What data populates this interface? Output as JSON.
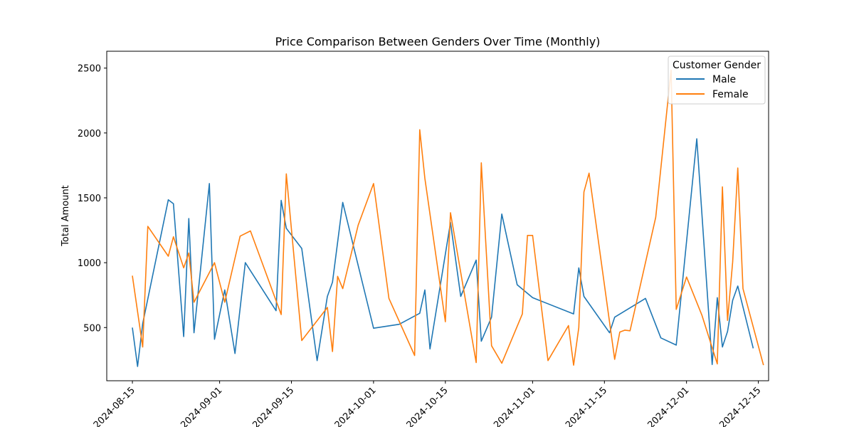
{
  "chart_data": {
    "type": "line",
    "title": "Price Comparison Between Genders Over Time (Monthly)",
    "xlabel": "",
    "ylabel": "Total Amount",
    "xlim": [
      "2024-08-10",
      "2024-12-17"
    ],
    "ylim": [
      90,
      2630
    ],
    "x_ticks": [
      "2024-08-15",
      "2024-09-01",
      "2024-09-15",
      "2024-10-01",
      "2024-10-15",
      "2024-11-01",
      "2024-11-15",
      "2024-12-01",
      "2024-12-15"
    ],
    "y_ticks": [
      500,
      1000,
      1500,
      2000,
      2500
    ],
    "grid": false,
    "legend": {
      "title": "Customer Gender",
      "position": "top-right"
    },
    "colors": {
      "Male": "#1f77b4",
      "Female": "#ff7f0e",
      "axis": "#000000"
    },
    "series": [
      {
        "name": "Male",
        "color": "#1f77b4",
        "points": [
          [
            "2024-08-15",
            500
          ],
          [
            "2024-08-16",
            200
          ],
          [
            "2024-08-17",
            530
          ],
          [
            "2024-08-22",
            1485
          ],
          [
            "2024-08-23",
            1455
          ],
          [
            "2024-08-25",
            430
          ],
          [
            "2024-08-26",
            1340
          ],
          [
            "2024-08-27",
            460
          ],
          [
            "2024-08-30",
            1610
          ],
          [
            "2024-08-31",
            410
          ],
          [
            "2024-09-02",
            790
          ],
          [
            "2024-09-04",
            300
          ],
          [
            "2024-09-06",
            1000
          ],
          [
            "2024-09-12",
            630
          ],
          [
            "2024-09-13",
            1480
          ],
          [
            "2024-09-14",
            1265
          ],
          [
            "2024-09-17",
            1110
          ],
          [
            "2024-09-20",
            245
          ],
          [
            "2024-09-22",
            740
          ],
          [
            "2024-09-23",
            850
          ],
          [
            "2024-09-25",
            1465
          ],
          [
            "2024-10-01",
            495
          ],
          [
            "2024-10-06",
            525
          ],
          [
            "2024-10-10",
            610
          ],
          [
            "2024-10-11",
            790
          ],
          [
            "2024-10-12",
            335
          ],
          [
            "2024-10-16",
            1310
          ],
          [
            "2024-10-18",
            740
          ],
          [
            "2024-10-21",
            1020
          ],
          [
            "2024-10-22",
            395
          ],
          [
            "2024-10-24",
            580
          ],
          [
            "2024-10-26",
            1375
          ],
          [
            "2024-10-29",
            830
          ],
          [
            "2024-11-01",
            730
          ],
          [
            "2024-11-09",
            605
          ],
          [
            "2024-11-10",
            960
          ],
          [
            "2024-11-11",
            740
          ],
          [
            "2024-11-16",
            460
          ],
          [
            "2024-11-17",
            580
          ],
          [
            "2024-11-23",
            725
          ],
          [
            "2024-11-26",
            420
          ],
          [
            "2024-11-29",
            365
          ],
          [
            "2024-12-03",
            1955
          ],
          [
            "2024-12-06",
            215
          ],
          [
            "2024-12-07",
            730
          ],
          [
            "2024-12-08",
            350
          ],
          [
            "2024-12-09",
            470
          ],
          [
            "2024-12-10",
            710
          ],
          [
            "2024-12-11",
            820
          ],
          [
            "2024-12-14",
            340
          ]
        ]
      },
      {
        "name": "Female",
        "color": "#ff7f0e",
        "points": [
          [
            "2024-08-15",
            900
          ],
          [
            "2024-08-17",
            350
          ],
          [
            "2024-08-18",
            1280
          ],
          [
            "2024-08-22",
            1050
          ],
          [
            "2024-08-23",
            1200
          ],
          [
            "2024-08-25",
            960
          ],
          [
            "2024-08-26",
            1075
          ],
          [
            "2024-08-27",
            695
          ],
          [
            "2024-08-31",
            1000
          ],
          [
            "2024-09-02",
            695
          ],
          [
            "2024-09-05",
            1205
          ],
          [
            "2024-09-07",
            1245
          ],
          [
            "2024-09-13",
            600
          ],
          [
            "2024-09-14",
            1685
          ],
          [
            "2024-09-17",
            400
          ],
          [
            "2024-09-22",
            655
          ],
          [
            "2024-09-23",
            315
          ],
          [
            "2024-09-24",
            895
          ],
          [
            "2024-09-25",
            800
          ],
          [
            "2024-09-28",
            1290
          ],
          [
            "2024-10-01",
            1610
          ],
          [
            "2024-10-04",
            725
          ],
          [
            "2024-10-09",
            285
          ],
          [
            "2024-10-10",
            2025
          ],
          [
            "2024-10-11",
            1650
          ],
          [
            "2024-10-15",
            545
          ],
          [
            "2024-10-16",
            1385
          ],
          [
            "2024-10-21",
            230
          ],
          [
            "2024-10-22",
            1770
          ],
          [
            "2024-10-24",
            360
          ],
          [
            "2024-10-26",
            225
          ],
          [
            "2024-10-30",
            605
          ],
          [
            "2024-10-31",
            1210
          ],
          [
            "2024-11-01",
            1210
          ],
          [
            "2024-11-04",
            245
          ],
          [
            "2024-11-08",
            515
          ],
          [
            "2024-11-09",
            210
          ],
          [
            "2024-11-10",
            500
          ],
          [
            "2024-11-11",
            1545
          ],
          [
            "2024-11-12",
            1690
          ],
          [
            "2024-11-17",
            255
          ],
          [
            "2024-11-18",
            465
          ],
          [
            "2024-11-19",
            480
          ],
          [
            "2024-11-20",
            475
          ],
          [
            "2024-11-25",
            1350
          ],
          [
            "2024-11-28",
            2485
          ],
          [
            "2024-11-29",
            640
          ],
          [
            "2024-12-01",
            890
          ],
          [
            "2024-12-04",
            595
          ],
          [
            "2024-12-07",
            220
          ],
          [
            "2024-12-08",
            1585
          ],
          [
            "2024-12-09",
            555
          ],
          [
            "2024-12-10",
            1005
          ],
          [
            "2024-12-11",
            1730
          ],
          [
            "2024-12-12",
            800
          ],
          [
            "2024-12-16",
            210
          ]
        ]
      }
    ]
  }
}
